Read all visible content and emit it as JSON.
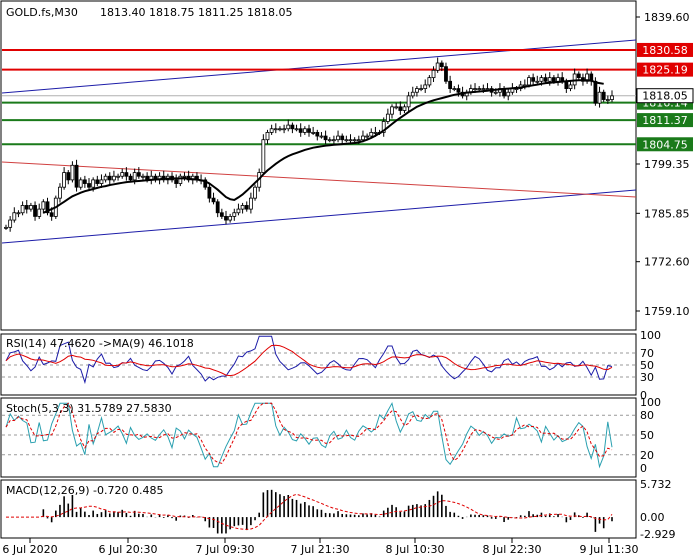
{
  "header": {
    "symbol": "GOLD.fs,M30",
    "ohlc": "1813.40 1818.75 1811.25 1818.05"
  },
  "indicators": {
    "rsi_label": "RSI(14) 47.4620  ->MA(9) 46.1018",
    "stoch_label": "Stoch(5,3,3) 31.5789 27.5830",
    "macd_label": "MACD(12,26,9) -0.720 0.485"
  },
  "colors": {
    "candle": "#000000",
    "ma": "#000000",
    "channel": "#1c1ca8",
    "resistance": "#e00000",
    "support": "#1a7a1a",
    "trend": "#d04040",
    "rsi_main": "#1c1ca8",
    "rsi_ma": "#e00000",
    "stoch_main": "#2aa0b0",
    "stoch_signal": "#e00000",
    "macd_hist": "#000000",
    "macd_signal": "#e00000"
  },
  "chart_data": {
    "type": "candlestick",
    "price_axis_ticks": [
      "1839.60",
      "1825.19",
      "1818.05",
      "1816.14",
      "1811.37",
      "1804.75",
      "1799.35",
      "1785.85",
      "1772.60",
      "1759.10"
    ],
    "time_axis_ticks": [
      "6 Jul 2020",
      "6 Jul 20:30",
      "7 Jul 09:30",
      "7 Jul 21:30",
      "8 Jul 10:30",
      "8 Jul 22:30",
      "9 Jul 11:30"
    ],
    "levels": [
      {
        "label": "1830.58",
        "value": 1830.58,
        "kind": "resistance"
      },
      {
        "label": "1825.19",
        "value": 1825.19,
        "kind": "resistance"
      },
      {
        "label": "1816.14",
        "value": 1816.14,
        "kind": "support"
      },
      {
        "label": "1811.37",
        "value": 1811.37,
        "kind": "support"
      },
      {
        "label": "1804.75",
        "value": 1804.75,
        "kind": "support"
      }
    ],
    "current_price": {
      "label": "1818.05",
      "value": 1818.05
    },
    "close_series": [
      1782,
      1784,
      1786,
      1786,
      1788,
      1787,
      1788,
      1785,
      1787,
      1789,
      1786,
      1785,
      1790,
      1793,
      1797,
      1795,
      1799,
      1793,
      1795,
      1794,
      1793,
      1795,
      1794,
      1795,
      1796,
      1795,
      1796,
      1796,
      1797,
      1796,
      1795,
      1797,
      1796,
      1796,
      1795,
      1796,
      1795,
      1796,
      1795,
      1796,
      1795,
      1794,
      1796,
      1796,
      1795,
      1796,
      1795,
      1795,
      1793,
      1790,
      1789,
      1786,
      1785,
      1784,
      1785,
      1786,
      1787,
      1788,
      1787,
      1790,
      1793,
      1797,
      1806,
      1808,
      1809,
      1809,
      1809,
      1809,
      1810,
      1809,
      1809,
      1808,
      1809,
      1808,
      1808,
      1807,
      1807,
      1806,
      1806,
      1806,
      1807,
      1806,
      1806,
      1806,
      1806,
      1806,
      1807,
      1807,
      1808,
      1808,
      1808,
      1811,
      1813,
      1815,
      1815,
      1814,
      1815,
      1818,
      1819,
      1820,
      1820,
      1821,
      1823,
      1825,
      1827,
      1826,
      1822,
      1820,
      1820,
      1819,
      1818,
      1819,
      1820,
      1820,
      1820,
      1820,
      1820,
      1819,
      1819,
      1820,
      1818,
      1819,
      1820,
      1820,
      1821,
      1821,
      1823,
      1822,
      1822,
      1823,
      1822,
      1823,
      1822,
      1823,
      1822,
      1820,
      1821,
      1824,
      1823,
      1822,
      1824,
      1822,
      1816,
      1819,
      1817,
      1817,
      1818
    ],
    "ma_series": [
      null,
      null,
      null,
      null,
      null,
      null,
      null,
      null,
      null,
      1786,
      1786.5,
      1787,
      1787.5,
      1788.3,
      1789,
      1789.8,
      1790.5,
      1791,
      1791.5,
      1791.9,
      1792.2,
      1792.5,
      1792.8,
      1793.1,
      1793.3,
      1793.6,
      1793.8,
      1794,
      1794.2,
      1794.4,
      1794.5,
      1794.6,
      1794.7,
      1794.8,
      1794.9,
      1795,
      1795.1,
      1795.2,
      1795.3,
      1795.3,
      1795.4,
      1795.4,
      1795.4,
      1795.4,
      1795.3,
      1795.2,
      1795.1,
      1794.9,
      1794.6,
      1794,
      1793.2,
      1792.3,
      1791.3,
      1790.3,
      1789.7,
      1789.5,
      1790.2,
      1791,
      1792,
      1793.1,
      1794.2,
      1795.3,
      1796.5,
      1797.6,
      1798.5,
      1799.4,
      1800.2,
      1800.9,
      1801.5,
      1802,
      1802.4,
      1802.8,
      1803.2,
      1803.5,
      1803.8,
      1804,
      1804.2,
      1804.4,
      1804.5,
      1804.6,
      1804.7,
      1804.8,
      1804.9,
      1805,
      1805.1,
      1805.3,
      1805.6,
      1806,
      1806.5,
      1807.1,
      1807.8,
      1808.5,
      1809.4,
      1810.3,
      1811.2,
      1812,
      1812.8,
      1813.6,
      1814.3,
      1815,
      1815.5,
      1816,
      1816.4,
      1816.8,
      1817.1,
      1817.4,
      1817.7,
      1818,
      1818.3,
      1818.5,
      1818.7,
      1818.9,
      1819,
      1819.1,
      1819.2,
      1819.3,
      1819.4,
      1819.6,
      1819.7,
      1819.8,
      1819.9,
      1820,
      1820.1,
      1820.2,
      1820.3,
      1820.5,
      1820.7,
      1820.9,
      1821.1,
      1821.3,
      1821.5,
      1821.6,
      1821.7,
      1821.8,
      1821.9,
      1822,
      1822.1,
      1822.2,
      1822.3,
      1822.3,
      1822.3,
      1822.2,
      1821.7,
      1821.5,
      1821.3
    ],
    "rsi": {
      "ticks": [
        "100",
        "70",
        "50",
        "30",
        "0"
      ],
      "value": 47.462,
      "ma_value": 46.1018
    },
    "stoch": {
      "ticks": [
        "100",
        "80",
        "50",
        "20",
        "0"
      ],
      "main": 31.5789,
      "signal": 27.583
    },
    "macd": {
      "ticks": [
        "5.732",
        "0.00",
        "-2.929"
      ],
      "main": -0.72,
      "signal": 0.485
    }
  }
}
